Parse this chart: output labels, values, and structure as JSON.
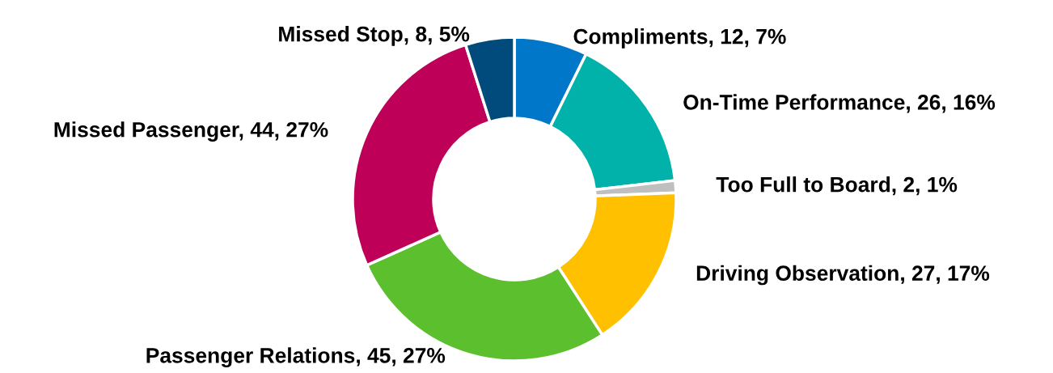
{
  "chart_data": {
    "type": "donut",
    "categories": [
      "Compliments",
      "On-Time Performance",
      "Too Full to Board",
      "Driving Observation",
      "Passenger Relations",
      "Missed Passenger",
      "Missed Stop"
    ],
    "values": [
      12,
      26,
      2,
      27,
      45,
      44,
      8
    ],
    "value_labels": [
      "12, 7%",
      "26, 16%",
      "2, 1%",
      "27, 17%",
      "45, 27%",
      "44, 27%",
      "8, 5%"
    ],
    "colors": [
      "#0077c8",
      "#00b2a9",
      "#bfbfbf",
      "#ffc000",
      "#5cbf2e",
      "#be0059",
      "#004b7c"
    ],
    "legend": false
  }
}
